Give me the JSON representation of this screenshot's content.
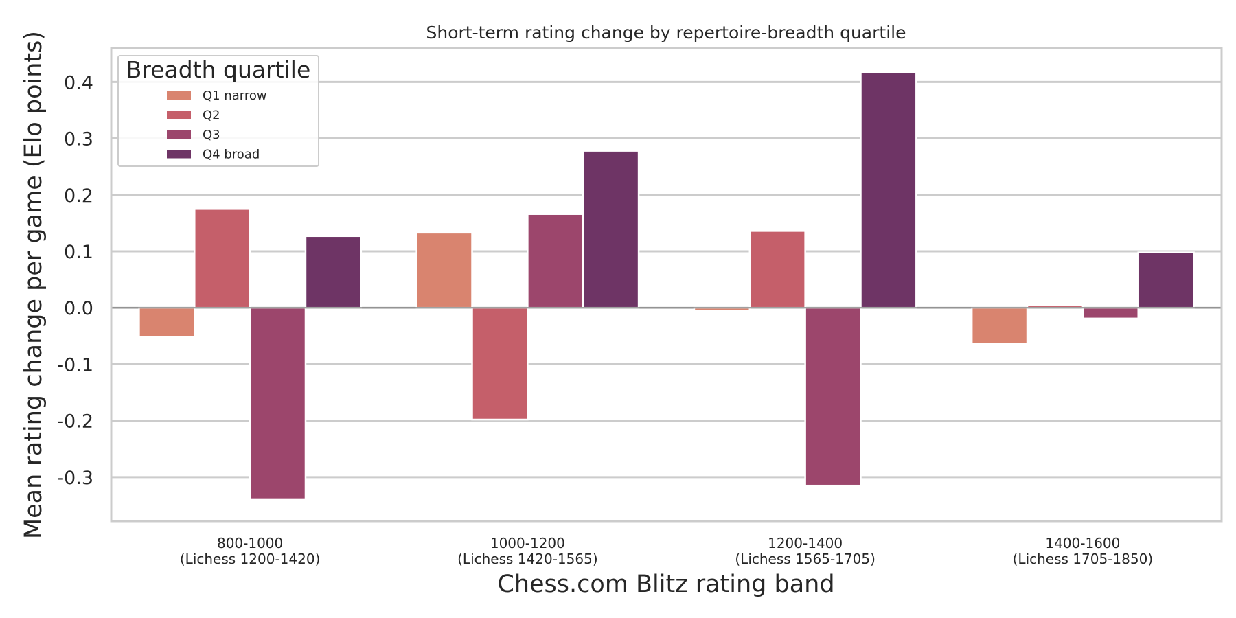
{
  "chart_data": {
    "type": "bar",
    "title": "Short-term rating change by repertoire-breadth quartile",
    "xlabel": "Chess.com Blitz rating band",
    "ylabel": "Mean rating change per game (Elo points)",
    "categories": [
      [
        "800-1000",
        "(Lichess 1200-1420)"
      ],
      [
        "1000-1200",
        "(Lichess 1420-1565)"
      ],
      [
        "1200-1400",
        "(Lichess 1565-1705)"
      ],
      [
        "1400-1600",
        "(Lichess 1705-1850)"
      ]
    ],
    "series": [
      {
        "name": "Q1 narrow",
        "color": "#d9846f",
        "values": [
          -0.052,
          0.133,
          -0.005,
          -0.064
        ]
      },
      {
        "name": "Q2",
        "color": "#c55f6a",
        "values": [
          0.175,
          -0.198,
          0.136,
          0.005
        ]
      },
      {
        "name": "Q3",
        "color": "#9c466c",
        "values": [
          -0.339,
          0.166,
          -0.315,
          -0.019
        ]
      },
      {
        "name": "Q4 broad",
        "color": "#6e3465",
        "values": [
          0.127,
          0.278,
          0.417,
          0.098
        ]
      }
    ],
    "legend": {
      "title": "Breadth quartile",
      "placement": "top-left"
    },
    "ylim": [
      -0.378,
      0.46
    ],
    "yticks": [
      {
        "value": 0.4,
        "label": "0.4"
      },
      {
        "value": 0.3,
        "label": "0.3"
      },
      {
        "value": 0.2,
        "label": "0.2"
      },
      {
        "value": 0.1,
        "label": "0.1"
      },
      {
        "value": 0.0,
        "label": "0.0"
      },
      {
        "value": -0.1,
        "label": "-0.1"
      },
      {
        "value": -0.2,
        "label": "-0.2"
      },
      {
        "value": -0.3,
        "label": "-0.3"
      }
    ],
    "grid": true,
    "zero_line": true
  }
}
